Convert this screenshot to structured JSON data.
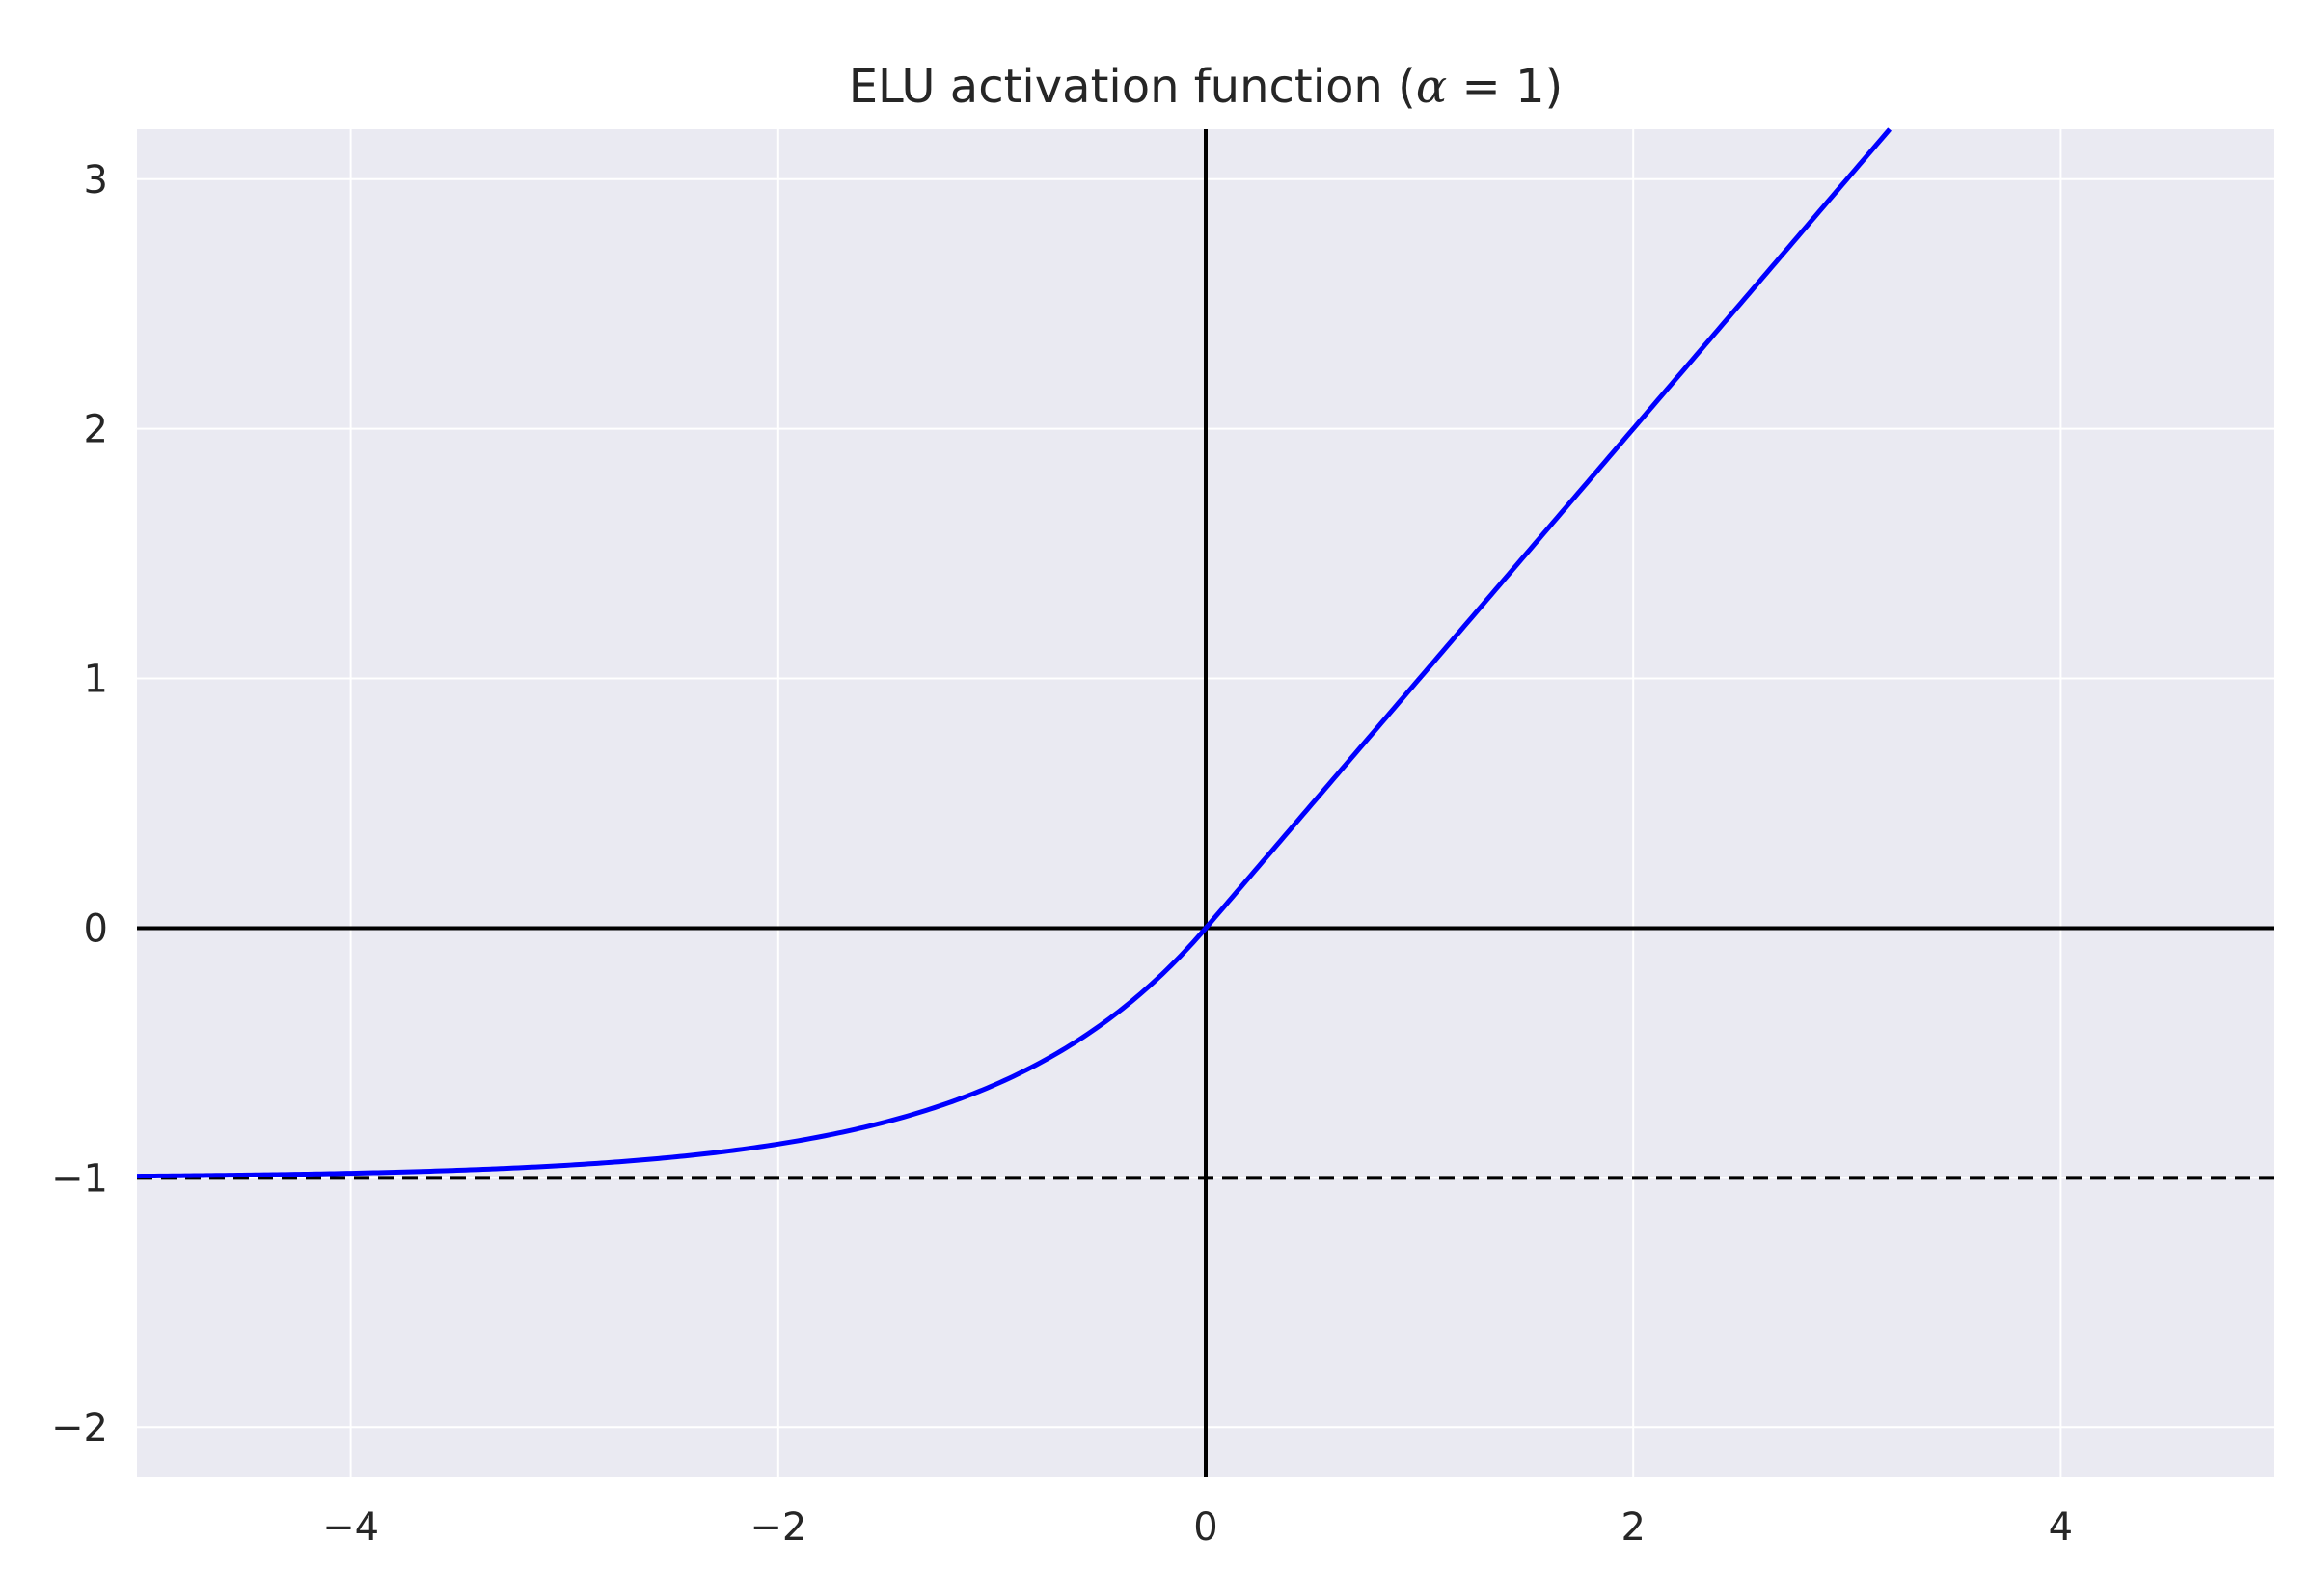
{
  "chart_data": {
    "type": "line",
    "title": "ELU activation function (α = 1)",
    "title_parts": {
      "prefix": "ELU activation function (",
      "alpha": "α",
      "equals": " = 1)"
    },
    "xlabel": "",
    "ylabel": "",
    "xlim": [
      -5,
      5
    ],
    "ylim": [
      -2.2,
      3.2
    ],
    "x_ticks": [
      -4,
      -2,
      0,
      2,
      4
    ],
    "x_tick_labels": [
      "−4",
      "−2",
      "0",
      "2",
      "4"
    ],
    "y_ticks": [
      -2,
      -1,
      0,
      1,
      2,
      3
    ],
    "y_tick_labels": [
      "−2",
      "−1",
      "0",
      "1",
      "2",
      "3"
    ],
    "grid": true,
    "background_color": "#EAEAF2",
    "grid_color": "#FFFFFF",
    "series": [
      {
        "function": "elu",
        "alpha": 1,
        "color": "#0000FF",
        "x": [
          -5,
          -4.5,
          -4,
          -3.5,
          -3,
          -2.5,
          -2,
          -1.75,
          -1.5,
          -1.25,
          -1,
          -0.75,
          -0.5,
          -0.375,
          -0.25,
          -0.125,
          0,
          1,
          2,
          3,
          3.2
        ],
        "y": [
          -0.993,
          -0.989,
          -0.982,
          -0.97,
          -0.95,
          -0.918,
          -0.865,
          -0.826,
          -0.777,
          -0.713,
          -0.632,
          -0.528,
          -0.393,
          -0.313,
          -0.221,
          -0.118,
          0,
          1,
          2,
          3,
          3.2
        ]
      }
    ],
    "reference_lines": [
      {
        "orientation": "horizontal",
        "value": 0,
        "style": "solid",
        "color": "#000000"
      },
      {
        "orientation": "vertical",
        "value": 0,
        "style": "solid",
        "color": "#000000"
      },
      {
        "orientation": "horizontal",
        "value": -1,
        "style": "dashed",
        "color": "#000000"
      }
    ]
  }
}
